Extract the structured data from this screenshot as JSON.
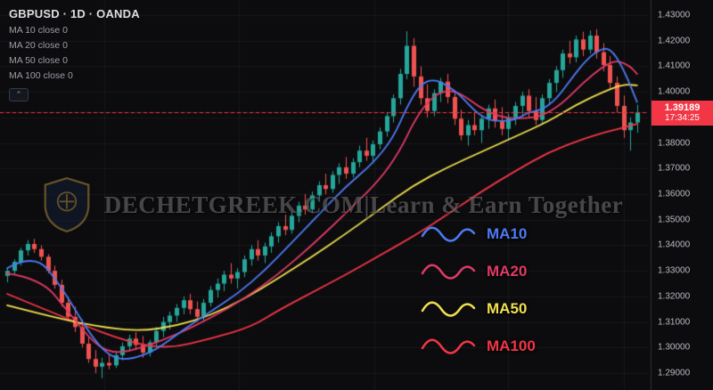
{
  "header": {
    "symbol_line": "GBPUSD · 1D · OANDA",
    "indicators": [
      {
        "label": "MA 10 close 0"
      },
      {
        "label": "MA 20 close 0"
      },
      {
        "label": "MA 50 close 0"
      },
      {
        "label": "MA 100 close 0"
      }
    ],
    "collapse_button": "⌃"
  },
  "watermark": {
    "text": "DECHETGREEK.COM|Learn & Earn Together"
  },
  "legend": [
    {
      "label": "MA10",
      "color": "#4d7bf3"
    },
    {
      "label": "MA20",
      "color": "#e03a65"
    },
    {
      "label": "MA50",
      "color": "#f0df4e"
    },
    {
      "label": "MA100",
      "color": "#f23645"
    }
  ],
  "price_badge": {
    "price": "1.39189",
    "time": "17:34:25",
    "color": "#f23645"
  },
  "price_axis": {
    "min": 1.29,
    "max": 1.43,
    "step": 0.01,
    "decimals": 5,
    "ticks": [
      "1.43000",
      "1.42000",
      "1.41000",
      "1.40000",
      "1.39000",
      "1.38000",
      "1.37000",
      "1.36000",
      "1.35000",
      "1.34000",
      "1.33000",
      "1.32000",
      "1.31000",
      "1.30000",
      "1.29000"
    ]
  },
  "chart_data": {
    "type": "candlestick",
    "symbol": "GBPUSD",
    "timeframe": "1D",
    "exchange": "OANDA",
    "title": "GBPUSD · 1D · OANDA",
    "ylim": [
      1.29,
      1.43
    ],
    "grid": true,
    "up_color": "#26a69a",
    "down_color": "#ef5350",
    "last_price": 1.39189,
    "candles": [
      [
        1.328,
        1.331,
        1.3255,
        1.33
      ],
      [
        1.33,
        1.3345,
        1.3285,
        1.3335
      ],
      [
        1.3335,
        1.339,
        1.332,
        1.338
      ],
      [
        1.338,
        1.342,
        1.336,
        1.3405
      ],
      [
        1.3405,
        1.3425,
        1.337,
        1.3385
      ],
      [
        1.3385,
        1.34,
        1.334,
        1.3355
      ],
      [
        1.3355,
        1.3365,
        1.329,
        1.33
      ],
      [
        1.33,
        1.332,
        1.323,
        1.3245
      ],
      [
        1.3245,
        1.3265,
        1.316,
        1.3175
      ],
      [
        1.3175,
        1.32,
        1.3105,
        1.312
      ],
      [
        1.312,
        1.316,
        1.306,
        1.308
      ],
      [
        1.308,
        1.311,
        1.3,
        1.3015
      ],
      [
        1.3015,
        1.304,
        1.294,
        1.2955
      ],
      [
        1.2955,
        1.299,
        1.29,
        1.2925
      ],
      [
        1.2925,
        1.296,
        1.288,
        1.294
      ],
      [
        1.294,
        1.2975,
        1.2915,
        1.293
      ],
      [
        1.293,
        1.2985,
        1.292,
        1.297
      ],
      [
        1.297,
        1.302,
        1.295,
        1.3005
      ],
      [
        1.3005,
        1.305,
        1.2985,
        1.3035
      ],
      [
        1.3035,
        1.306,
        1.299,
        1.301
      ],
      [
        1.301,
        1.3045,
        1.296,
        1.298
      ],
      [
        1.298,
        1.303,
        1.2965,
        1.302
      ],
      [
        1.302,
        1.308,
        1.3005,
        1.3065
      ],
      [
        1.3065,
        1.312,
        1.304,
        1.31
      ],
      [
        1.31,
        1.314,
        1.307,
        1.3125
      ],
      [
        1.3125,
        1.317,
        1.31,
        1.3155
      ],
      [
        1.3155,
        1.32,
        1.313,
        1.3185
      ],
      [
        1.3185,
        1.321,
        1.313,
        1.315
      ],
      [
        1.315,
        1.318,
        1.31,
        1.312
      ],
      [
        1.312,
        1.319,
        1.3105,
        1.3175
      ],
      [
        1.3175,
        1.324,
        1.316,
        1.3225
      ],
      [
        1.3225,
        1.327,
        1.3195,
        1.325
      ],
      [
        1.325,
        1.33,
        1.322,
        1.3285
      ],
      [
        1.3285,
        1.333,
        1.325,
        1.327
      ],
      [
        1.327,
        1.331,
        1.323,
        1.3295
      ],
      [
        1.3295,
        1.336,
        1.3275,
        1.3345
      ],
      [
        1.3345,
        1.34,
        1.332,
        1.3385
      ],
      [
        1.3385,
        1.342,
        1.334,
        1.336
      ],
      [
        1.336,
        1.341,
        1.333,
        1.3395
      ],
      [
        1.3395,
        1.345,
        1.337,
        1.3435
      ],
      [
        1.3435,
        1.349,
        1.341,
        1.3475
      ],
      [
        1.3475,
        1.352,
        1.344,
        1.346
      ],
      [
        1.346,
        1.353,
        1.3445,
        1.3515
      ],
      [
        1.3515,
        1.357,
        1.349,
        1.3555
      ],
      [
        1.3555,
        1.36,
        1.352,
        1.354
      ],
      [
        1.354,
        1.361,
        1.3525,
        1.3595
      ],
      [
        1.3595,
        1.365,
        1.357,
        1.3635
      ],
      [
        1.3635,
        1.368,
        1.36,
        1.362
      ],
      [
        1.362,
        1.369,
        1.3605,
        1.3675
      ],
      [
        1.3675,
        1.372,
        1.364,
        1.3705
      ],
      [
        1.3705,
        1.3745,
        1.366,
        1.368
      ],
      [
        1.368,
        1.374,
        1.3665,
        1.3725
      ],
      [
        1.3725,
        1.379,
        1.3705,
        1.377
      ],
      [
        1.377,
        1.382,
        1.373,
        1.375
      ],
      [
        1.375,
        1.381,
        1.372,
        1.3795
      ],
      [
        1.3795,
        1.386,
        1.3775,
        1.3845
      ],
      [
        1.3845,
        1.392,
        1.3825,
        1.3905
      ],
      [
        1.3905,
        1.399,
        1.388,
        1.3975
      ],
      [
        1.3975,
        1.409,
        1.395,
        1.407
      ],
      [
        1.407,
        1.4237,
        1.405,
        1.418
      ],
      [
        1.418,
        1.421,
        1.402,
        1.406
      ],
      [
        1.406,
        1.41,
        1.395,
        1.3975
      ],
      [
        1.3975,
        1.403,
        1.39,
        1.3925
      ],
      [
        1.3925,
        1.401,
        1.3905,
        1.3995
      ],
      [
        1.3995,
        1.4055,
        1.396,
        1.404
      ],
      [
        1.404,
        1.407,
        1.3955,
        1.398
      ],
      [
        1.398,
        1.4,
        1.387,
        1.3895
      ],
      [
        1.3895,
        1.393,
        1.381,
        1.383
      ],
      [
        1.383,
        1.389,
        1.379,
        1.387
      ],
      [
        1.387,
        1.392,
        1.383,
        1.385
      ],
      [
        1.385,
        1.391,
        1.38,
        1.3895
      ],
      [
        1.3895,
        1.395,
        1.3855,
        1.3935
      ],
      [
        1.3935,
        1.397,
        1.386,
        1.3885
      ],
      [
        1.3885,
        1.394,
        1.383,
        1.3855
      ],
      [
        1.3855,
        1.3915,
        1.381,
        1.39
      ],
      [
        1.39,
        1.396,
        1.387,
        1.3945
      ],
      [
        1.3945,
        1.4,
        1.3905,
        1.3985
      ],
      [
        1.3985,
        1.401,
        1.39,
        1.3925
      ],
      [
        1.3925,
        1.398,
        1.387,
        1.389
      ],
      [
        1.389,
        1.399,
        1.3875,
        1.3975
      ],
      [
        1.3975,
        1.405,
        1.395,
        1.4035
      ],
      [
        1.4035,
        1.41,
        1.4,
        1.4085
      ],
      [
        1.4085,
        1.4165,
        1.4055,
        1.415
      ],
      [
        1.415,
        1.42,
        1.411,
        1.4135
      ],
      [
        1.4135,
        1.422,
        1.4115,
        1.4205
      ],
      [
        1.4205,
        1.4235,
        1.414,
        1.4165
      ],
      [
        1.4165,
        1.424,
        1.415,
        1.422
      ],
      [
        1.422,
        1.4245,
        1.413,
        1.4155
      ],
      [
        1.4155,
        1.419,
        1.408,
        1.4105
      ],
      [
        1.4105,
        1.414,
        1.401,
        1.4035
      ],
      [
        1.4035,
        1.406,
        1.392,
        1.3945
      ],
      [
        1.3945,
        1.3985,
        1.382,
        1.385
      ],
      [
        1.385,
        1.39,
        1.377,
        1.388
      ],
      [
        1.388,
        1.395,
        1.384,
        1.39189
      ]
    ],
    "overlays": [
      {
        "name": "MA10",
        "color": "#4d7bf3",
        "points": [
          [
            0,
            1.331
          ],
          [
            4,
            1.337
          ],
          [
            8,
            1.324
          ],
          [
            12,
            1.306
          ],
          [
            15,
            1.2965
          ],
          [
            18,
            1.295
          ],
          [
            22,
            1.299
          ],
          [
            26,
            1.307
          ],
          [
            30,
            1.314
          ],
          [
            34,
            1.321
          ],
          [
            38,
            1.33
          ],
          [
            42,
            1.341
          ],
          [
            46,
            1.352
          ],
          [
            50,
            1.363
          ],
          [
            54,
            1.372
          ],
          [
            57,
            1.382
          ],
          [
            59,
            1.394
          ],
          [
            61,
            1.403
          ],
          [
            63,
            1.405
          ],
          [
            65,
            1.4025
          ],
          [
            67,
            1.3985
          ],
          [
            69,
            1.3925
          ],
          [
            71,
            1.389
          ],
          [
            73,
            1.3885
          ],
          [
            75,
            1.389
          ],
          [
            77,
            1.392
          ],
          [
            79,
            1.393
          ],
          [
            81,
            1.397
          ],
          [
            83,
            1.404
          ],
          [
            85,
            1.411
          ],
          [
            87,
            1.416
          ],
          [
            89,
            1.4175
          ],
          [
            91,
            1.409
          ],
          [
            93,
            1.396
          ]
        ]
      },
      {
        "name": "MA20",
        "color": "#e03a65",
        "points": [
          [
            0,
            1.329
          ],
          [
            5,
            1.327
          ],
          [
            9,
            1.314
          ],
          [
            13,
            1.301
          ],
          [
            16,
            1.2975
          ],
          [
            20,
            1.3
          ],
          [
            25,
            1.305
          ],
          [
            30,
            1.3115
          ],
          [
            35,
            1.319
          ],
          [
            40,
            1.3285
          ],
          [
            45,
            1.34
          ],
          [
            50,
            1.3525
          ],
          [
            55,
            1.3655
          ],
          [
            58,
            1.377
          ],
          [
            60,
            1.388
          ],
          [
            62,
            1.396
          ],
          [
            64,
            1.4
          ],
          [
            66,
            1.4005
          ],
          [
            68,
            1.3975
          ],
          [
            70,
            1.3935
          ],
          [
            73,
            1.39
          ],
          [
            76,
            1.3895
          ],
          [
            79,
            1.3905
          ],
          [
            82,
            1.3955
          ],
          [
            85,
            1.4035
          ],
          [
            88,
            1.41
          ],
          [
            90,
            1.4125
          ],
          [
            92,
            1.41
          ],
          [
            93,
            1.407
          ]
        ]
      },
      {
        "name": "MA50",
        "color": "#f0df4e",
        "points": [
          [
            0,
            1.3165
          ],
          [
            8,
            1.311
          ],
          [
            15,
            1.3075
          ],
          [
            20,
            1.3065
          ],
          [
            25,
            1.3085
          ],
          [
            30,
            1.3125
          ],
          [
            35,
            1.319
          ],
          [
            40,
            1.327
          ],
          [
            45,
            1.3355
          ],
          [
            50,
            1.3445
          ],
          [
            55,
            1.354
          ],
          [
            60,
            1.3635
          ],
          [
            65,
            1.3705
          ],
          [
            70,
            1.3765
          ],
          [
            75,
            1.3825
          ],
          [
            80,
            1.3885
          ],
          [
            84,
            1.395
          ],
          [
            88,
            1.4
          ],
          [
            91,
            1.403
          ],
          [
            93,
            1.4025
          ]
        ]
      },
      {
        "name": "MA100",
        "color": "#f23645",
        "points": [
          [
            0,
            1.321
          ],
          [
            10,
            1.31
          ],
          [
            18,
            1.302
          ],
          [
            24,
            1.2995
          ],
          [
            30,
            1.3035
          ],
          [
            36,
            1.308
          ],
          [
            40,
            1.3145
          ],
          [
            45,
            1.3215
          ],
          [
            50,
            1.3285
          ],
          [
            55,
            1.336
          ],
          [
            60,
            1.3435
          ],
          [
            65,
            1.352
          ],
          [
            70,
            1.361
          ],
          [
            75,
            1.369
          ],
          [
            80,
            1.3765
          ],
          [
            85,
            1.3815
          ],
          [
            88,
            1.384
          ],
          [
            91,
            1.386
          ],
          [
            93,
            1.3875
          ]
        ]
      }
    ]
  }
}
